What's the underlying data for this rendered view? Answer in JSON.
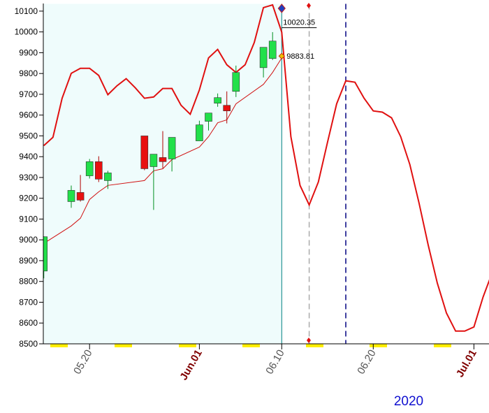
{
  "chart_data": {
    "type": "candlestick",
    "xlabel": "2020",
    "ylim": [
      8500,
      10135
    ],
    "yticks": [
      8500,
      8600,
      8700,
      8800,
      8900,
      9000,
      9100,
      9200,
      9300,
      9400,
      9500,
      9600,
      9700,
      9800,
      9900,
      10000,
      10100
    ],
    "xlim": [
      "2020-05-15",
      "2020-07-03"
    ],
    "xticks": [
      {
        "value": "2020-05-20",
        "label": "05.20"
      },
      {
        "value": "2020-06-01",
        "label": "Jun.01"
      },
      {
        "value": "2020-06-10",
        "label": "06.10"
      },
      {
        "value": "2020-06-20",
        "label": "06.20"
      },
      {
        "value": "2020-07-01",
        "label": "Jul.01"
      }
    ],
    "up_color": "#22e04a",
    "down_color": "#e81010",
    "x": [
      "2020-05-15",
      "2020-05-18",
      "2020-05-19",
      "2020-05-20",
      "2020-05-21",
      "2020-05-22",
      "2020-05-26",
      "2020-05-27",
      "2020-05-28",
      "2020-05-29",
      "2020-06-01",
      "2020-06-02",
      "2020-06-03",
      "2020-06-04",
      "2020-06-05",
      "2020-06-08",
      "2020-06-09"
    ],
    "open": [
      8850,
      9184,
      9228,
      9308,
      9376,
      9285,
      9500,
      9352,
      9396,
      9389,
      9476,
      9570,
      9657,
      9647,
      9714,
      9828,
      9872
    ],
    "high": [
      9017,
      9261,
      9312,
      9389,
      9402,
      9332,
      9500,
      9412,
      9523,
      9493,
      9573,
      9610,
      9704,
      9714,
      9838,
      9926,
      9999
    ],
    "low": [
      8815,
      9154,
      9184,
      9295,
      9278,
      9245,
      9335,
      9144,
      9345,
      9329,
      9476,
      9526,
      9640,
      9560,
      9687,
      9781,
      9865
    ],
    "close": [
      9015,
      9238,
      9191,
      9376,
      9292,
      9322,
      9342,
      9412,
      9376,
      9493,
      9553,
      9610,
      9684,
      9620,
      9805,
      9926,
      9956
    ],
    "lines": [
      {
        "color": "#e01010",
        "width": 2,
        "x": [
          "2020-05-15",
          "2020-05-16",
          "2020-05-17",
          "2020-05-18",
          "2020-05-19",
          "2020-05-20",
          "2020-05-21",
          "2020-05-22",
          "2020-05-23",
          "2020-05-24",
          "2020-05-25",
          "2020-05-26",
          "2020-05-27",
          "2020-05-28",
          "2020-05-29",
          "2020-05-30",
          "2020-05-31",
          "2020-06-01",
          "2020-06-02",
          "2020-06-03",
          "2020-06-04",
          "2020-06-05",
          "2020-06-06",
          "2020-06-07",
          "2020-06-08",
          "2020-06-09",
          "2020-06-10",
          "2020-06-11",
          "2020-06-12",
          "2020-06-13",
          "2020-06-14",
          "2020-06-15",
          "2020-06-16",
          "2020-06-17",
          "2020-06-18",
          "2020-06-19",
          "2020-06-20",
          "2020-06-21",
          "2020-06-22",
          "2020-06-23",
          "2020-06-24",
          "2020-06-25",
          "2020-06-26",
          "2020-06-27",
          "2020-06-28",
          "2020-06-29",
          "2020-06-30",
          "2020-07-01",
          "2020-07-02",
          "2020-07-03"
        ],
        "values": [
          9453,
          9493,
          9681,
          9801,
          9825,
          9825,
          9791,
          9698,
          9741,
          9775,
          9731,
          9681,
          9687,
          9728,
          9728,
          9647,
          9604,
          9721,
          9875,
          9916,
          9842,
          9805,
          9842,
          9949,
          10117,
          10130,
          9999,
          9496,
          9262,
          9168,
          9278,
          9469,
          9654,
          9765,
          9758,
          9681,
          9620,
          9614,
          9587,
          9496,
          9362,
          9178,
          8976,
          8792,
          8648,
          8561,
          8561,
          8581,
          8725,
          8842
        ]
      },
      {
        "color": "#d01010",
        "width": 1,
        "x": [
          "2020-05-15",
          "2020-05-18",
          "2020-05-19",
          "2020-05-20",
          "2020-05-21",
          "2020-05-22",
          "2020-05-26",
          "2020-05-27",
          "2020-05-28",
          "2020-05-29",
          "2020-06-01",
          "2020-06-02",
          "2020-06-03",
          "2020-06-04",
          "2020-06-05",
          "2020-06-08",
          "2020-06-09",
          "2020-06-10"
        ],
        "values": [
          8983,
          9067,
          9104,
          9194,
          9231,
          9262,
          9285,
          9332,
          9342,
          9386,
          9446,
          9496,
          9563,
          9577,
          9654,
          9748,
          9805,
          9875
        ]
      }
    ],
    "annotations": [
      {
        "x": "2020-06-10",
        "value": 10020.35
      },
      {
        "x": "2020-06-10",
        "value": 9883.81
      }
    ],
    "vlines": [
      {
        "x": "2020-06-10",
        "color": "#008080",
        "dash": false
      },
      {
        "x": "2020-06-13",
        "color": "#aaaaaa",
        "dash": true
      },
      {
        "x": "2020-06-17",
        "color": "#000080",
        "dash": true
      }
    ]
  }
}
